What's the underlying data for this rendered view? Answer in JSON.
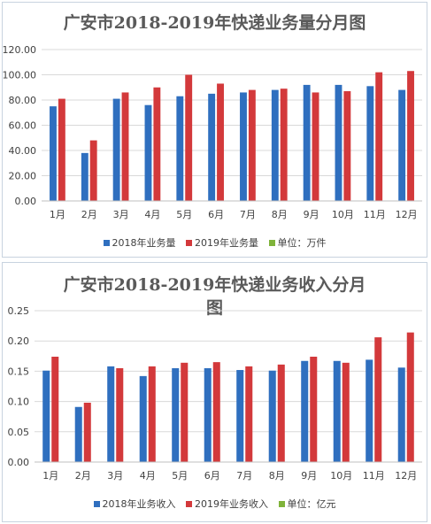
{
  "chart_data": [
    {
      "type": "bar",
      "title": "广安市2018-2019年快递业务量分月图",
      "categories": [
        "1月",
        "2月",
        "3月",
        "4月",
        "5月",
        "6月",
        "7月",
        "8月",
        "9月",
        "10月",
        "11月",
        "12月"
      ],
      "series": [
        {
          "name": "2018年业务量",
          "color": "#2f6fbf",
          "values": [
            75,
            38,
            81,
            76,
            83,
            85,
            86,
            88,
            92,
            92,
            91,
            88
          ]
        },
        {
          "name": "2019年业务量",
          "color": "#d3393b",
          "values": [
            81,
            48,
            86,
            90,
            100,
            93,
            88,
            89,
            86,
            87,
            102,
            103
          ]
        }
      ],
      "unit_label": "单位：万件",
      "unit_color": "#7fb33a",
      "ylim": [
        0,
        120
      ],
      "yticks": [
        "0.00",
        "20.00",
        "40.00",
        "60.00",
        "80.00",
        "100.00",
        "120.00"
      ],
      "grid": true,
      "legend_position": "bottom"
    },
    {
      "type": "bar",
      "title": "广安市2018-2019年快递业务收入分月图",
      "categories": [
        "1月",
        "2月",
        "3月",
        "4月",
        "5月",
        "6月",
        "7月",
        "8月",
        "9月",
        "10月",
        "11月",
        "12月"
      ],
      "series": [
        {
          "name": "2018年业务收入",
          "color": "#2f6fbf",
          "values": [
            0.151,
            0.091,
            0.158,
            0.142,
            0.155,
            0.155,
            0.152,
            0.151,
            0.167,
            0.167,
            0.169,
            0.156
          ]
        },
        {
          "name": "2019年业务收入",
          "color": "#d3393b",
          "values": [
            0.174,
            0.098,
            0.155,
            0.158,
            0.164,
            0.165,
            0.158,
            0.161,
            0.174,
            0.164,
            0.206,
            0.214
          ]
        }
      ],
      "unit_label": "单位：亿元",
      "unit_color": "#7fb33a",
      "ylim": [
        0,
        0.25
      ],
      "yticks": [
        "0.00",
        "0.05",
        "0.10",
        "0.15",
        "0.20",
        "0.25"
      ],
      "grid": true,
      "legend_position": "bottom"
    }
  ]
}
